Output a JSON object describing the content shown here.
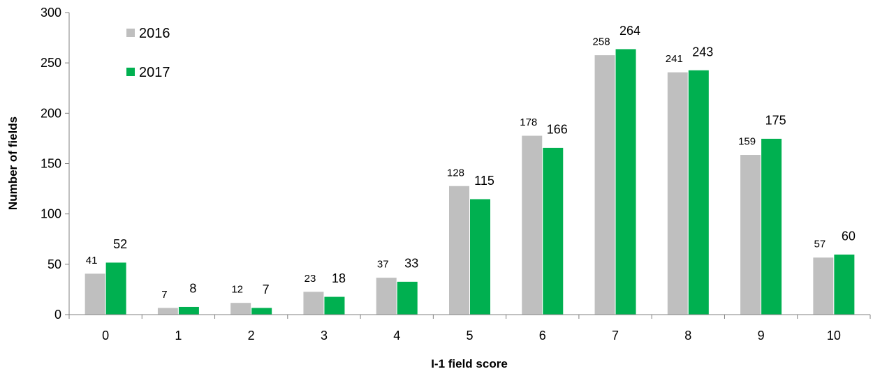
{
  "chart_data": {
    "type": "bar",
    "title": "",
    "xlabel": "I-1 field score",
    "ylabel": "Number of fields",
    "ylim": [
      0,
      300
    ],
    "yticks": [
      0,
      50,
      100,
      150,
      200,
      250,
      300
    ],
    "categories": [
      "0",
      "1",
      "2",
      "3",
      "4",
      "5",
      "6",
      "7",
      "8",
      "9",
      "10"
    ],
    "series": [
      {
        "name": "2016",
        "color": "#bfbfbf",
        "values": [
          41,
          7,
          12,
          23,
          37,
          128,
          178,
          258,
          241,
          159,
          57
        ]
      },
      {
        "name": "2017",
        "color": "#00b050",
        "values": [
          52,
          8,
          7,
          18,
          33,
          115,
          166,
          264,
          243,
          175,
          60
        ]
      }
    ],
    "legend_position": "top-left",
    "grid": false
  }
}
